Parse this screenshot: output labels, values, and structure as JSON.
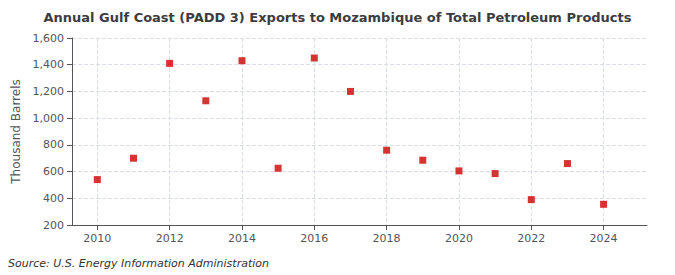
{
  "chart_data": {
    "type": "scatter",
    "title": "Annual Gulf Coast (PADD 3) Exports to Mozambique of Total Petroleum Products",
    "ylabel": "Thousand Barrels",
    "annotation": "Source: U.S. Energy Information Administration",
    "x": [
      2010,
      2011,
      2012,
      2013,
      2014,
      2015,
      2016,
      2017,
      2018,
      2019,
      2020,
      2021,
      2022,
      2023,
      2024
    ],
    "values": [
      540,
      700,
      1410,
      1130,
      1430,
      625,
      1450,
      1200,
      760,
      685,
      605,
      585,
      390,
      660,
      355
    ],
    "xlim": [
      2009.3,
      2025.2
    ],
    "xticks": [
      2010,
      2012,
      2014,
      2016,
      2018,
      2020,
      2022,
      2024
    ],
    "ylim": [
      200,
      1600
    ],
    "yticks": [
      200,
      400,
      600,
      800,
      {
        "value": 1000,
        "label": "1,000"
      },
      {
        "value": 1200,
        "label": "1,200"
      },
      {
        "value": 1400,
        "label": "1,400"
      },
      {
        "value": 1600,
        "label": "1,600"
      }
    ],
    "color": "#cc0000",
    "marker": "square",
    "grid": true
  }
}
